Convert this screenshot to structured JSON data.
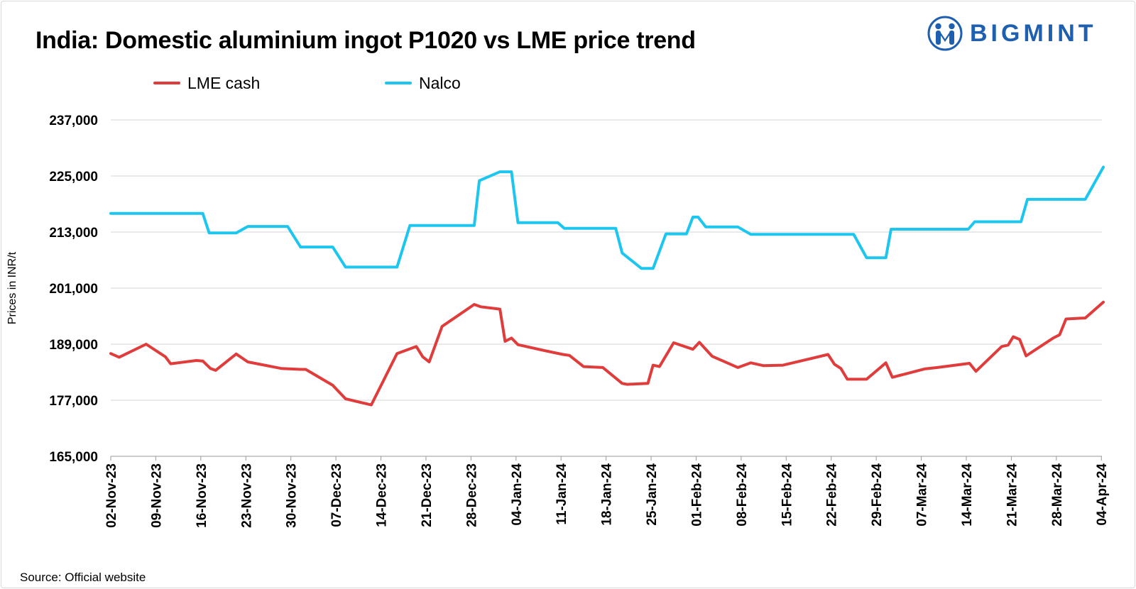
{
  "title": "India: Domestic aluminium ingot P1020 vs LME price trend",
  "brand": {
    "name": "BIGMINT",
    "icon": "people-circle-icon",
    "color": "#1f5fb0"
  },
  "source": "Source: Official website",
  "chart_data": {
    "type": "line",
    "title": "India: Domestic aluminium ingot P1020 vs LME price trend",
    "xlabel": "",
    "ylabel": "Prices in INR/t",
    "ylim": [
      165000,
      237000
    ],
    "yticks": [
      165000,
      177000,
      189000,
      201000,
      213000,
      225000,
      237000
    ],
    "ytick_labels": [
      "165,000",
      "177,000",
      "189,000",
      "201,000",
      "213,000",
      "225,000",
      "237,000"
    ],
    "x_start": "2023-11-02",
    "x_end": "2024-04-04",
    "xticks": [
      {
        "day": 0,
        "label": "02-Nov-23"
      },
      {
        "day": 7,
        "label": "09-Nov-23"
      },
      {
        "day": 14,
        "label": "16-Nov-23"
      },
      {
        "day": 21,
        "label": "23-Nov-23"
      },
      {
        "day": 28,
        "label": "30-Nov-23"
      },
      {
        "day": 35,
        "label": "07-Dec-23"
      },
      {
        "day": 42,
        "label": "14-Dec-23"
      },
      {
        "day": 49,
        "label": "21-Dec-23"
      },
      {
        "day": 56,
        "label": "28-Dec-23"
      },
      {
        "day": 63,
        "label": "04-Jan-24"
      },
      {
        "day": 70,
        "label": "11-Jan-24"
      },
      {
        "day": 77,
        "label": "18-Jan-24"
      },
      {
        "day": 84,
        "label": "25-Jan-24"
      },
      {
        "day": 91,
        "label": "01-Feb-24"
      },
      {
        "day": 98,
        "label": "08-Feb-24"
      },
      {
        "day": 105,
        "label": "15-Feb-24"
      },
      {
        "day": 112,
        "label": "22-Feb-24"
      },
      {
        "day": 119,
        "label": "29-Feb-24"
      },
      {
        "day": 126,
        "label": "07-Mar-24"
      },
      {
        "day": 133,
        "label": "14-Mar-24"
      },
      {
        "day": 140,
        "label": "21-Mar-24"
      },
      {
        "day": 147,
        "label": "28-Mar-24"
      },
      {
        "day": 154,
        "label": "04-Apr-24"
      }
    ],
    "grid": true,
    "legend_position": "top-left",
    "series": [
      {
        "name": "LME cash",
        "color": "#e03c3c",
        "points": [
          [
            0,
            187000
          ],
          [
            1.3,
            186200
          ],
          [
            5.5,
            189000
          ],
          [
            8.5,
            186300
          ],
          [
            9.3,
            184800
          ],
          [
            13.3,
            185500
          ],
          [
            14.3,
            185400
          ],
          [
            15.5,
            183800
          ],
          [
            16.3,
            183400
          ],
          [
            19.5,
            186900
          ],
          [
            21.3,
            185200
          ],
          [
            26.5,
            183800
          ],
          [
            29.5,
            183600
          ],
          [
            30.3,
            183600
          ],
          [
            34.5,
            180200
          ],
          [
            36.5,
            177300
          ],
          [
            40.5,
            176000
          ],
          [
            44.5,
            187000
          ],
          [
            47.5,
            188500
          ],
          [
            48.5,
            186300
          ],
          [
            49.5,
            185200
          ],
          [
            51.5,
            192800
          ],
          [
            56.5,
            197500
          ],
          [
            57.5,
            197000
          ],
          [
            60.5,
            196500
          ],
          [
            61.3,
            189600
          ],
          [
            62.3,
            190300
          ],
          [
            63.3,
            188900
          ],
          [
            67.5,
            187600
          ],
          [
            70.3,
            186800
          ],
          [
            71.3,
            186600
          ],
          [
            73.5,
            184200
          ],
          [
            76.5,
            184000
          ],
          [
            79.5,
            180600
          ],
          [
            80.3,
            180400
          ],
          [
            83.5,
            180600
          ],
          [
            84.3,
            184500
          ],
          [
            85.3,
            184200
          ],
          [
            87.5,
            189300
          ],
          [
            90.5,
            187900
          ],
          [
            91.5,
            189400
          ],
          [
            93.5,
            186400
          ],
          [
            97.5,
            184000
          ],
          [
            99.5,
            185000
          ],
          [
            101.5,
            184400
          ],
          [
            104.5,
            184500
          ],
          [
            111.5,
            186800
          ],
          [
            112.5,
            184700
          ],
          [
            113.5,
            183800
          ],
          [
            114.5,
            181500
          ],
          [
            117.5,
            181500
          ],
          [
            120.5,
            185000
          ],
          [
            121.5,
            181900
          ],
          [
            126.5,
            183700
          ],
          [
            128.5,
            184000
          ],
          [
            133.5,
            184900
          ],
          [
            134.5,
            183200
          ],
          [
            138.5,
            188500
          ],
          [
            139.5,
            188800
          ],
          [
            140.3,
            190600
          ],
          [
            141.3,
            190000
          ],
          [
            142.3,
            186500
          ],
          [
            146.5,
            190300
          ],
          [
            147.5,
            191000
          ],
          [
            148.5,
            194400
          ],
          [
            151.5,
            194600
          ],
          [
            154.3,
            198000
          ]
        ]
      },
      {
        "name": "Nalco",
        "color": "#1cc6ee",
        "points": [
          [
            0,
            217000
          ],
          [
            14.3,
            217000
          ],
          [
            15.3,
            212800
          ],
          [
            19.5,
            212800
          ],
          [
            21.3,
            214200
          ],
          [
            27.5,
            214200
          ],
          [
            29.5,
            209800
          ],
          [
            34.5,
            209800
          ],
          [
            36.5,
            205500
          ],
          [
            44.5,
            205500
          ],
          [
            46.5,
            214400
          ],
          [
            56.5,
            214400
          ],
          [
            57.3,
            224000
          ],
          [
            60.5,
            225900
          ],
          [
            62.3,
            225900
          ],
          [
            63.3,
            215000
          ],
          [
            69.5,
            215000
          ],
          [
            70.5,
            213800
          ],
          [
            78.5,
            213800
          ],
          [
            79.5,
            208500
          ],
          [
            82.5,
            205200
          ],
          [
            84.3,
            205200
          ],
          [
            86.3,
            212600
          ],
          [
            89.5,
            212600
          ],
          [
            90.5,
            216200
          ],
          [
            91.3,
            216200
          ],
          [
            92.5,
            214100
          ],
          [
            97.5,
            214100
          ],
          [
            99.5,
            212500
          ],
          [
            115.5,
            212500
          ],
          [
            117.5,
            207500
          ],
          [
            120.5,
            207500
          ],
          [
            121.3,
            213600
          ],
          [
            133.3,
            213600
          ],
          [
            134.3,
            215200
          ],
          [
            141.5,
            215200
          ],
          [
            142.5,
            220000
          ],
          [
            151.5,
            220000
          ],
          [
            154.3,
            226900
          ]
        ]
      }
    ]
  }
}
